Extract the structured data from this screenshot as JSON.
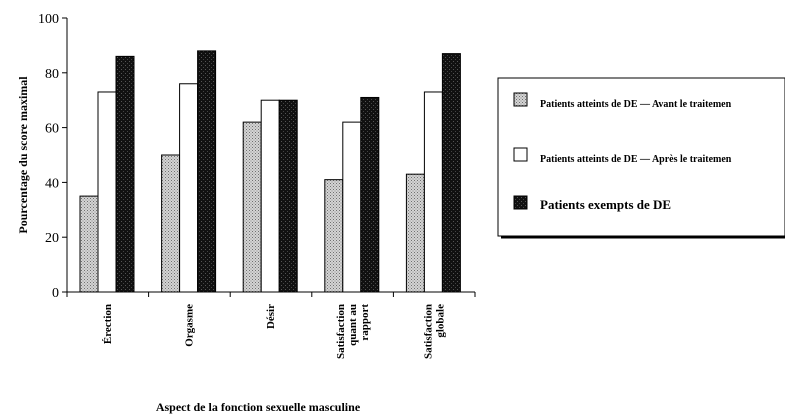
{
  "chart_data": {
    "type": "bar",
    "title": "",
    "xlabel": "Aspect de la fonction sexuelle masculine",
    "ylabel": "Pourcentage du score maximal",
    "ylim": [
      0,
      100
    ],
    "yticks": [
      "0",
      "20",
      "40",
      "60",
      "80",
      "100"
    ],
    "categories": [
      [
        "Érection"
      ],
      [
        "Orgasme"
      ],
      [
        "Désir"
      ],
      [
        "Satisfaction",
        "quant au",
        "rapport"
      ],
      [
        "Satisfaction",
        "globale"
      ]
    ],
    "series": [
      {
        "name": "Patients atteints de DE — Avant le traitemen",
        "values": [
          35,
          50,
          62,
          41,
          43
        ],
        "color": "#c8c8c8"
      },
      {
        "name": "Patients atteints de DE — Après le traitemen",
        "values": [
          73,
          76,
          70,
          62,
          73
        ],
        "color": "#ffffff"
      },
      {
        "name": "Patients exempts de DE",
        "values": [
          86,
          88,
          70,
          71,
          87
        ],
        "color": "#000000"
      }
    ],
    "legend_position": "right",
    "grid": false
  }
}
